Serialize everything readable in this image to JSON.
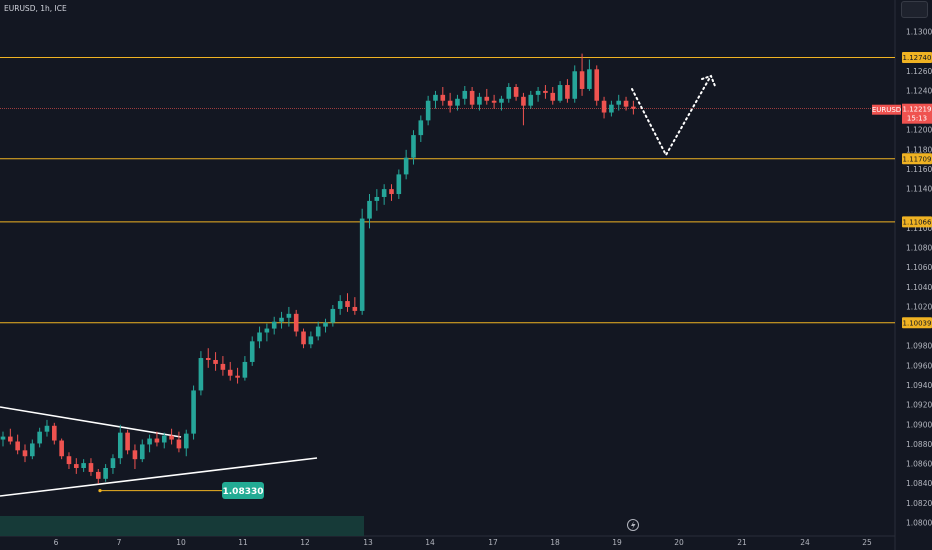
{
  "symbol": {
    "title": "EURUSD, 1h, ICE"
  },
  "colors": {
    "background": "#131722",
    "up": "#26a69a",
    "down": "#ef5350",
    "level": "#f0b323",
    "last_price_line": "#ef5350",
    "text": "#b2b5be"
  },
  "chart_data": {
    "type": "candlestick",
    "title": "EURUSD, 1h, ICE",
    "ylim": [
      1.0795,
      1.1345
    ],
    "y_ticks": [
      "1.13000",
      "1.12600",
      "1.12400",
      "1.12000",
      "1.11800",
      "1.11600",
      "1.11400",
      "1.11000",
      "1.10800",
      "1.10600",
      "1.10400",
      "1.10200",
      "1.09800",
      "1.09600",
      "1.09400",
      "1.09200",
      "1.09000",
      "1.08800",
      "1.08600",
      "1.08400",
      "1.08200",
      "1.08000"
    ],
    "x_ticks": [
      "6",
      "7",
      "10",
      "11",
      "12",
      "13",
      "14",
      "17",
      "18",
      "19",
      "20",
      "21",
      "24",
      "25"
    ],
    "horizontal_levels": [
      {
        "label": "1.12740",
        "value": 1.1274
      },
      {
        "label": "1.11709",
        "value": 1.11709
      },
      {
        "label": "1.11066",
        "value": 1.11066
      },
      {
        "label": "1.10039",
        "value": 1.10039
      }
    ],
    "last_price": {
      "symbol": "EURUSD",
      "value": "1.12219",
      "countdown": "15:13",
      "num": 1.12219
    },
    "annotation": {
      "label": "1.08330",
      "value": 1.0833
    },
    "triangle_upper": {
      "from": [
        0,
        1.0915
      ],
      "to": [
        10,
        1.089
      ]
    },
    "triangle_lower": {
      "from": [
        0,
        1.083
      ],
      "to": [
        52,
        1.0866
      ]
    },
    "projection": {
      "points": [
        [
          104,
          1.1243
        ],
        [
          109,
          1.1173
        ],
        [
          118,
          1.1252
        ]
      ]
    },
    "candles": [
      [
        1.0885,
        1.0893,
        1.0878,
        1.0888
      ],
      [
        1.0888,
        1.0896,
        1.088,
        1.0883
      ],
      [
        1.0883,
        1.089,
        1.087,
        1.0874
      ],
      [
        1.0874,
        1.088,
        1.0862,
        1.0868
      ],
      [
        1.0868,
        1.0885,
        1.0865,
        1.0881
      ],
      [
        1.0881,
        1.0897,
        1.0877,
        1.0893
      ],
      [
        1.0893,
        1.0905,
        1.0888,
        1.0899
      ],
      [
        1.0899,
        1.0902,
        1.088,
        1.0884
      ],
      [
        1.0884,
        1.0886,
        1.0865,
        1.0868
      ],
      [
        1.0868,
        1.0872,
        1.0855,
        1.086
      ],
      [
        1.086,
        1.0866,
        1.085,
        1.0856
      ],
      [
        1.0856,
        1.0865,
        1.0852,
        1.0861
      ],
      [
        1.0861,
        1.0866,
        1.0848,
        1.0852
      ],
      [
        1.0852,
        1.0855,
        1.084,
        1.0845
      ],
      [
        1.0845,
        1.086,
        1.0842,
        1.0856
      ],
      [
        1.0856,
        1.087,
        1.085,
        1.0866
      ],
      [
        1.0866,
        1.09,
        1.086,
        1.0892
      ],
      [
        1.0892,
        1.0895,
        1.087,
        1.0874
      ],
      [
        1.0874,
        1.088,
        1.0855,
        1.0865
      ],
      [
        1.0865,
        1.0885,
        1.0862,
        1.088
      ],
      [
        1.088,
        1.089,
        1.0872,
        1.0886
      ],
      [
        1.0886,
        1.0893,
        1.0878,
        1.0882
      ],
      [
        1.0882,
        1.0892,
        1.0876,
        1.0889
      ],
      [
        1.0889,
        1.0896,
        1.088,
        1.0885
      ],
      [
        1.0885,
        1.0893,
        1.0872,
        1.0876
      ],
      [
        1.0876,
        1.0895,
        1.0868,
        1.0891
      ],
      [
        1.0891,
        1.094,
        1.0885,
        1.0935
      ],
      [
        1.0935,
        1.0975,
        1.093,
        1.0968
      ],
      [
        1.0968,
        1.0978,
        1.0958,
        1.0966
      ],
      [
        1.0966,
        1.0974,
        1.0955,
        1.0962
      ],
      [
        1.0962,
        1.097,
        1.095,
        1.0956
      ],
      [
        1.0956,
        1.0964,
        1.0945,
        1.095
      ],
      [
        1.095,
        1.0958,
        1.0942,
        1.0948
      ],
      [
        1.0948,
        1.097,
        1.0945,
        1.0964
      ],
      [
        1.0964,
        1.099,
        1.096,
        1.0985
      ],
      [
        1.0985,
        1.1,
        1.0978,
        1.0994
      ],
      [
        1.0994,
        1.1003,
        1.0985,
        1.0998
      ],
      [
        1.0998,
        1.101,
        1.0992,
        1.1005
      ],
      [
        1.1005,
        1.1015,
        1.0998,
        1.1009
      ],
      [
        1.1009,
        1.102,
        1.1,
        1.1013
      ],
      [
        1.1013,
        1.1017,
        1.099,
        1.0995
      ],
      [
        1.0995,
        1.0998,
        1.0978,
        1.0982
      ],
      [
        1.0982,
        1.0995,
        1.0978,
        1.099
      ],
      [
        1.099,
        1.1005,
        1.0986,
        1.1
      ],
      [
        1.1,
        1.1008,
        1.0994,
        1.1004
      ],
      [
        1.1004,
        1.1022,
        1.1,
        1.1018
      ],
      [
        1.1018,
        1.1032,
        1.1012,
        1.1026
      ],
      [
        1.1026,
        1.1034,
        1.1015,
        1.102
      ],
      [
        1.102,
        1.103,
        1.1012,
        1.1016
      ],
      [
        1.1016,
        1.112,
        1.1012,
        1.111
      ],
      [
        1.111,
        1.1135,
        1.11,
        1.1128
      ],
      [
        1.1128,
        1.114,
        1.1118,
        1.1132
      ],
      [
        1.1132,
        1.1145,
        1.1124,
        1.114
      ],
      [
        1.114,
        1.1145,
        1.1128,
        1.1135
      ],
      [
        1.1135,
        1.116,
        1.113,
        1.1155
      ],
      [
        1.1155,
        1.118,
        1.115,
        1.1172
      ],
      [
        1.1172,
        1.12,
        1.1165,
        1.1195
      ],
      [
        1.1195,
        1.1215,
        1.1188,
        1.121
      ],
      [
        1.121,
        1.1235,
        1.1205,
        1.123
      ],
      [
        1.123,
        1.124,
        1.1222,
        1.1236
      ],
      [
        1.1236,
        1.1244,
        1.1225,
        1.123
      ],
      [
        1.123,
        1.1238,
        1.1218,
        1.1225
      ],
      [
        1.1225,
        1.1236,
        1.122,
        1.1232
      ],
      [
        1.1232,
        1.1245,
        1.1226,
        1.124
      ],
      [
        1.124,
        1.1244,
        1.1222,
        1.1226
      ],
      [
        1.1226,
        1.1238,
        1.122,
        1.1234
      ],
      [
        1.1234,
        1.1242,
        1.1226,
        1.123
      ],
      [
        1.123,
        1.1236,
        1.1222,
        1.1228
      ],
      [
        1.1228,
        1.1235,
        1.122,
        1.1232
      ],
      [
        1.1232,
        1.1248,
        1.1228,
        1.1244
      ],
      [
        1.1244,
        1.1247,
        1.123,
        1.1234
      ],
      [
        1.1234,
        1.1238,
        1.1205,
        1.1225
      ],
      [
        1.1225,
        1.124,
        1.1222,
        1.1236
      ],
      [
        1.1236,
        1.1244,
        1.1229,
        1.124
      ],
      [
        1.124,
        1.1246,
        1.1232,
        1.1238
      ],
      [
        1.1238,
        1.1244,
        1.1226,
        1.123
      ],
      [
        1.123,
        1.125,
        1.1228,
        1.1246
      ],
      [
        1.1246,
        1.1252,
        1.1228,
        1.1232
      ],
      [
        1.1232,
        1.1266,
        1.1228,
        1.126
      ],
      [
        1.126,
        1.1278,
        1.1235,
        1.1242
      ],
      [
        1.1242,
        1.1272,
        1.124,
        1.1262
      ],
      [
        1.1262,
        1.1266,
        1.1225,
        1.123
      ],
      [
        1.123,
        1.1234,
        1.1212,
        1.1218
      ],
      [
        1.1218,
        1.123,
        1.1214,
        1.1226
      ],
      [
        1.1226,
        1.1236,
        1.122,
        1.123
      ],
      [
        1.123,
        1.1234,
        1.122,
        1.1224
      ],
      [
        1.1224,
        1.123,
        1.1216,
        1.1222
      ]
    ]
  },
  "controls": {
    "goto_icon": "lightning-icon"
  }
}
